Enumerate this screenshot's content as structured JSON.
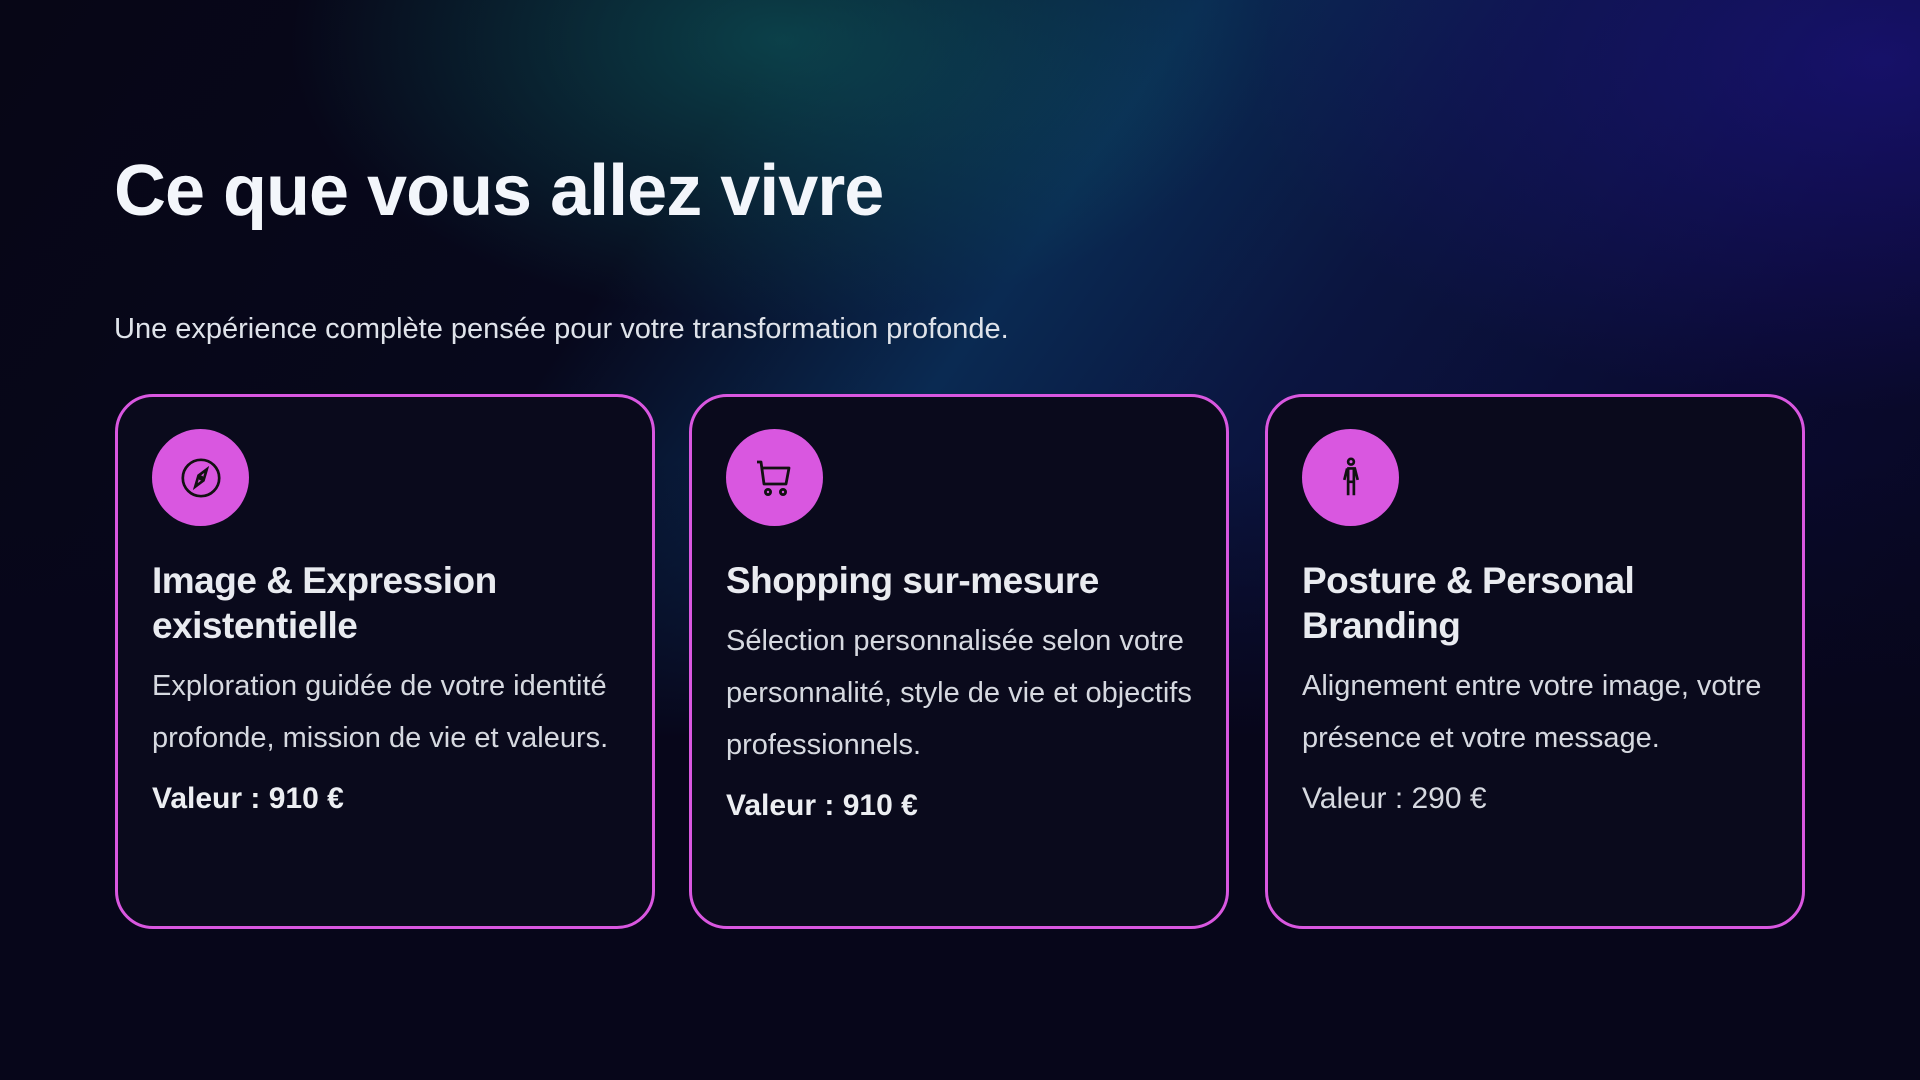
{
  "title": "Ce que vous allez vivre",
  "subtitle": "Une expérience complète pensée pour votre transformation profonde.",
  "accent_color": "#d957e0",
  "cards": [
    {
      "icon": "compass-icon",
      "title": "Image & Expression existentielle",
      "description": "Exploration guidée de votre identité profonde, mission de vie et valeurs.",
      "value": "Valeur : 910 €"
    },
    {
      "icon": "shopping-cart-icon",
      "title": "Shopping sur-mesure",
      "description": "Sélection personnalisée selon votre personnalité, style de vie et objectifs professionnels.",
      "value": "Valeur : 910 €"
    },
    {
      "icon": "person-icon",
      "title": "Posture & Personal Branding",
      "description": "Alignement entre votre image, votre présence et votre message.",
      "value": "Valeur : 290 €"
    }
  ]
}
